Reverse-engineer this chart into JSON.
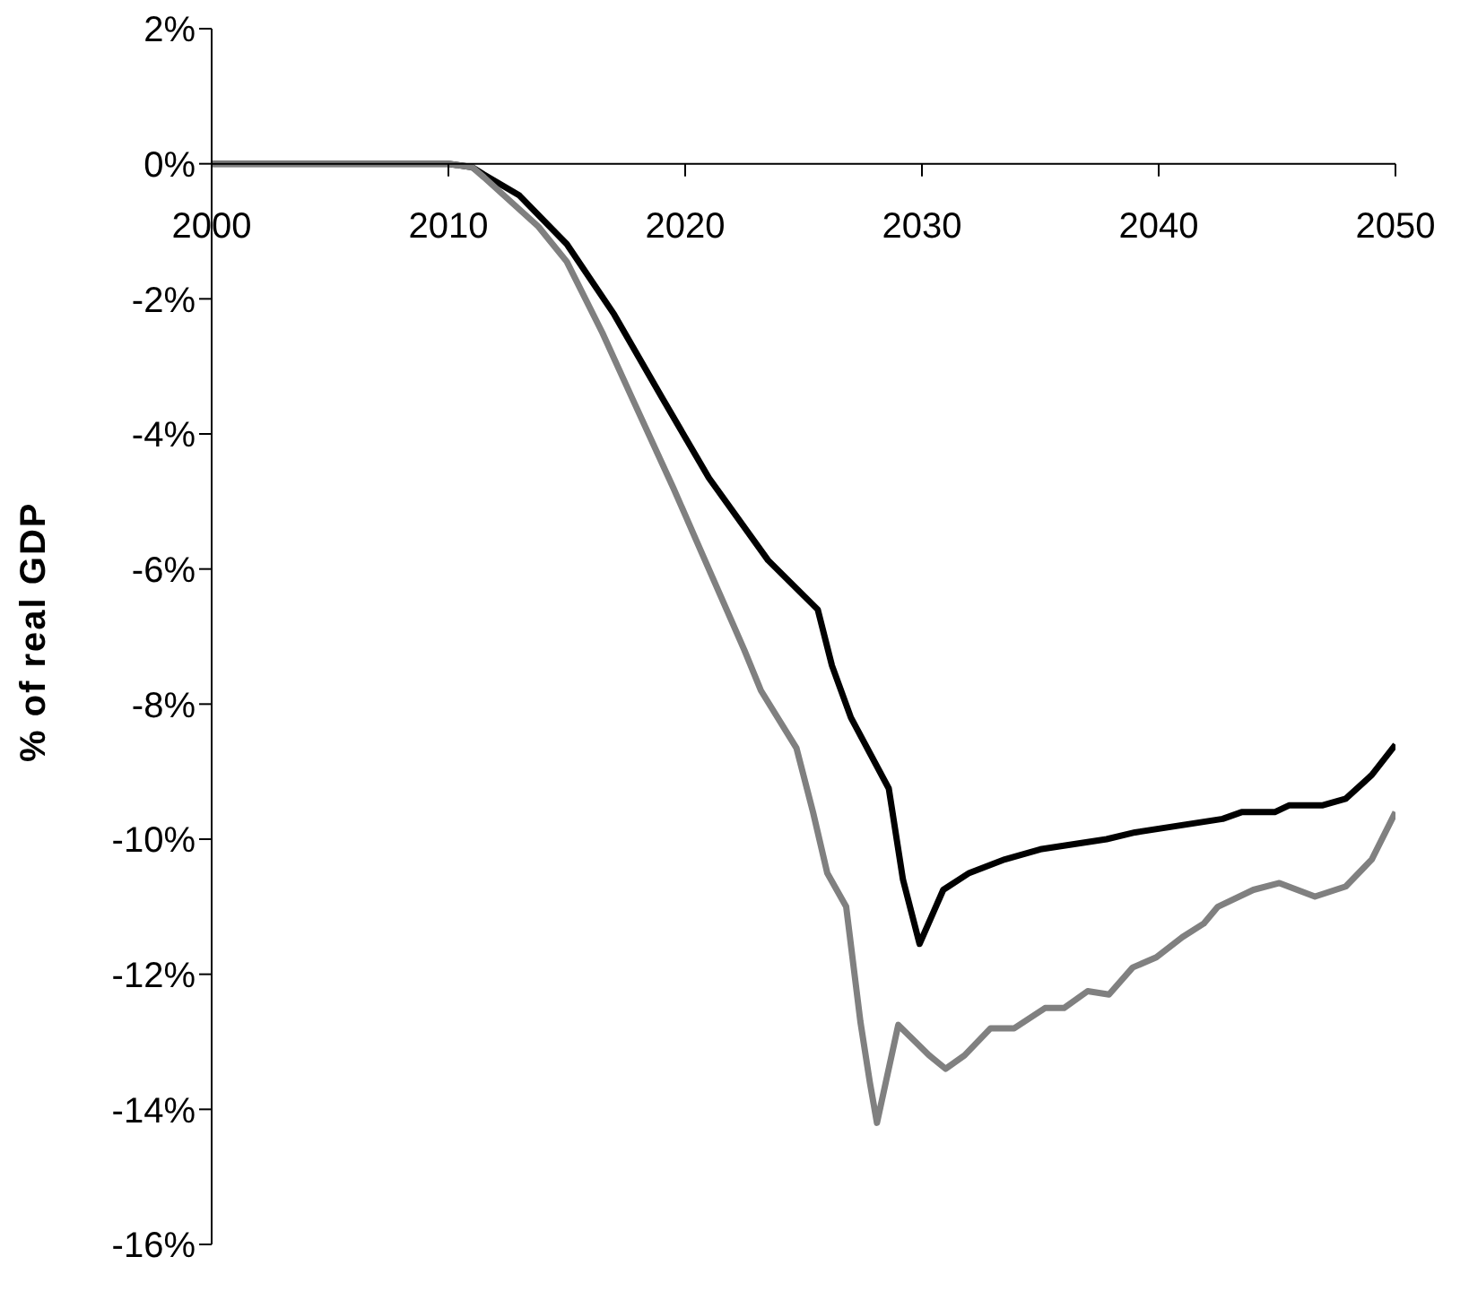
{
  "chart_data": {
    "type": "line",
    "ylabel": "% of real GDP",
    "xlim": [
      2000,
      2050
    ],
    "xticks": [
      2000,
      2010,
      2020,
      2030,
      2040,
      2050
    ],
    "ylim": [
      -16,
      2
    ],
    "yticks": [
      {
        "value": -16,
        "label": "-16%"
      },
      {
        "value": -14,
        "label": "-14%"
      },
      {
        "value": -12,
        "label": "-12%"
      },
      {
        "value": -10,
        "label": "-10%"
      },
      {
        "value": -8,
        "label": "-8%"
      },
      {
        "value": -6,
        "label": "-6%"
      },
      {
        "value": -4,
        "label": "-4%"
      },
      {
        "value": -2,
        "label": "-2%"
      },
      {
        "value": 0,
        "label": "0%"
      },
      {
        "value": 2,
        "label": "2%"
      }
    ],
    "series": [
      {
        "color": "#000000",
        "x": [
          2000,
          2005,
          2010,
          2011,
          2011.5,
          2013,
          2015,
          2017,
          2019,
          2021,
          2023.5,
          2025.6,
          2026.2,
          2027,
          2028.6,
          2029.2,
          2029.9,
          2030.9,
          2032,
          2033.5,
          2035,
          2037.8,
          2039,
          2042.7,
          2043.5,
          2044.9,
          2045.5,
          2046.9,
          2047.9,
          2049,
          2050
        ],
        "values": [
          0,
          0,
          0,
          -0.05,
          -0.16,
          -0.47,
          -1.19,
          -2.23,
          -3.45,
          -4.65,
          -5.87,
          -6.6,
          -7.43,
          -8.2,
          -9.25,
          -10.6,
          -11.55,
          -10.75,
          -10.5,
          -10.3,
          -10.15,
          -10.0,
          -9.9,
          -9.7,
          -9.6,
          -9.6,
          -9.5,
          -9.5,
          -9.4,
          -9.05,
          -8.6
        ]
      },
      {
        "color": "#808080",
        "x": [
          2000,
          2005,
          2010,
          2011,
          2011.5,
          2013.8,
          2015,
          2016.5,
          2017.8,
          2019.5,
          2020.5,
          2021.5,
          2022.5,
          2023.2,
          2024.7,
          2025.4,
          2026,
          2026.8,
          2027.4,
          2027.8,
          2028.1,
          2029,
          2030.3,
          2031,
          2031.8,
          2032.9,
          2033.9,
          2035.2,
          2036,
          2037,
          2037.9,
          2038.9,
          2039.9,
          2041,
          2041.9,
          2042.5,
          2044,
          2045.1,
          2046.6,
          2047.9,
          2049,
          2050
        ],
        "values": [
          0,
          0,
          0,
          -0.05,
          -0.2,
          -0.93,
          -1.45,
          -2.5,
          -3.5,
          -4.8,
          -5.6,
          -6.4,
          -7.2,
          -7.8,
          -8.65,
          -9.6,
          -10.5,
          -11.0,
          -12.7,
          -13.6,
          -14.2,
          -12.75,
          -13.2,
          -13.4,
          -13.2,
          -12.8,
          -12.8,
          -12.5,
          -12.5,
          -12.25,
          -12.3,
          -11.9,
          -11.75,
          -11.45,
          -11.25,
          -11.0,
          -10.75,
          -10.65,
          -10.85,
          -10.7,
          -10.3,
          -9.6
        ]
      }
    ]
  }
}
